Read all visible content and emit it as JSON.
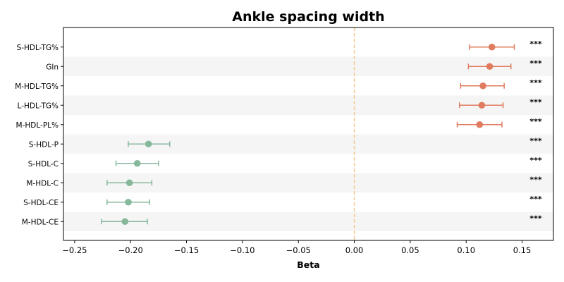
{
  "chart_data": {
    "type": "scatter",
    "title": "Ankle spacing width",
    "xlabel": "Beta",
    "ylabel": "",
    "xlim": [
      -0.26,
      0.178
    ],
    "xticks": [
      -0.25,
      -0.2,
      -0.15,
      -0.1,
      -0.05,
      0.0,
      0.05,
      0.1,
      0.15
    ],
    "xtick_labels": [
      "−0.25",
      "−0.20",
      "−0.15",
      "−0.10",
      "−0.05",
      "0.00",
      "0.05",
      "0.10",
      "0.15"
    ],
    "reference_line": 0,
    "colors": {
      "positive": "#e07b5f",
      "negative": "#86b89c",
      "reference": "#f5c98a",
      "band": "#f5f5f5"
    },
    "points": [
      {
        "label": "S-HDL-TG%",
        "beta": 0.123,
        "ci_low": 0.103,
        "ci_high": 0.143,
        "sig": "***"
      },
      {
        "label": "Gln",
        "beta": 0.121,
        "ci_low": 0.102,
        "ci_high": 0.14,
        "sig": "***"
      },
      {
        "label": "M-HDL-TG%",
        "beta": 0.115,
        "ci_low": 0.095,
        "ci_high": 0.134,
        "sig": "***"
      },
      {
        "label": "L-HDL-TG%",
        "beta": 0.114,
        "ci_low": 0.094,
        "ci_high": 0.133,
        "sig": "***"
      },
      {
        "label": "M-HDL-PL%",
        "beta": 0.112,
        "ci_low": 0.092,
        "ci_high": 0.132,
        "sig": "***"
      },
      {
        "label": "S-HDL-P",
        "beta": -0.184,
        "ci_low": -0.202,
        "ci_high": -0.165,
        "sig": "***"
      },
      {
        "label": "S-HDL-C",
        "beta": -0.194,
        "ci_low": -0.213,
        "ci_high": -0.175,
        "sig": "***"
      },
      {
        "label": "M-HDL-C",
        "beta": -0.201,
        "ci_low": -0.221,
        "ci_high": -0.181,
        "sig": "***"
      },
      {
        "label": "S-HDL-CE",
        "beta": -0.202,
        "ci_low": -0.221,
        "ci_high": -0.183,
        "sig": "***"
      },
      {
        "label": "M-HDL-CE",
        "beta": -0.205,
        "ci_low": -0.226,
        "ci_high": -0.185,
        "sig": "***"
      }
    ]
  }
}
